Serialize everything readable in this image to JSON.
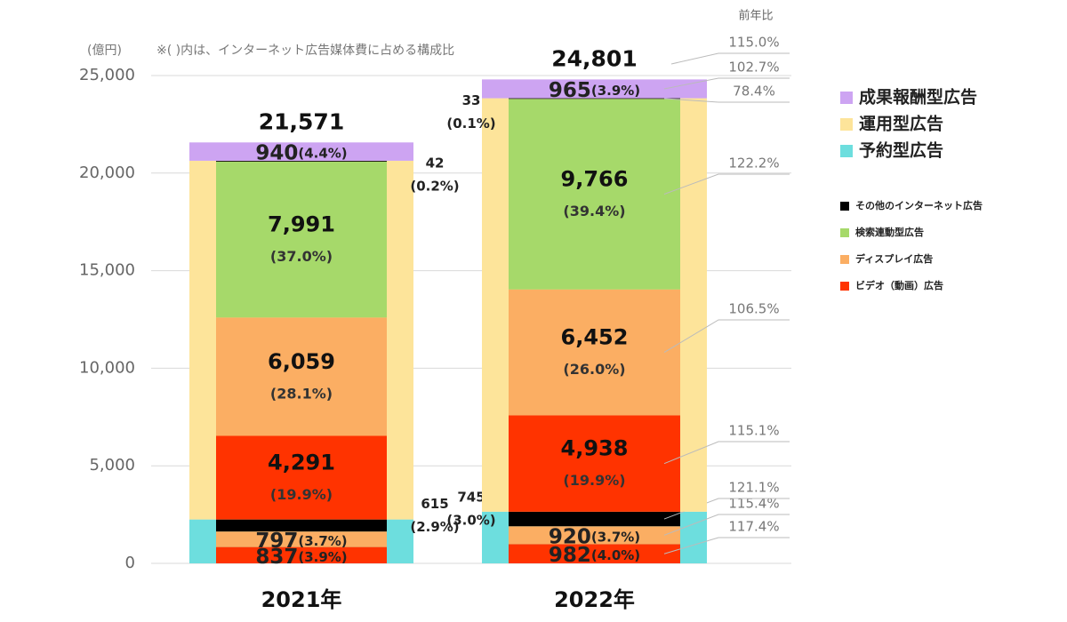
{
  "chart_data": {
    "type": "nested_stacked_bar",
    "unit_label": "(億円)",
    "note": "※( )内は、インターネット広告媒体費に占める構成比",
    "yoy_header": "前年比",
    "categories": [
      "2021年",
      "2022年"
    ],
    "ylim": [
      0,
      25000
    ],
    "yticks": [
      0,
      {
        "value": 5000,
        "label": "5,000"
      },
      {
        "value": 10000,
        "label": "10,000"
      },
      {
        "value": 15000,
        "label": "15,000"
      },
      {
        "value": 20000,
        "label": "20,000"
      },
      {
        "value": 25000,
        "label": "25,000"
      }
    ],
    "grid": true,
    "totals": {
      "values": [
        21571,
        24801
      ],
      "value_labels": [
        "21,571",
        "24,801"
      ],
      "yoy": "115.0%"
    },
    "groups": [
      {
        "name": "予約型広告",
        "color": "#6ddede",
        "segments": [
          {
            "color": "#ff3300",
            "values": [
              837,
              982
            ],
            "share_labels": [
              "(3.9%)",
              "(4.0%)"
            ],
            "yoy": "117.4%"
          },
          {
            "color": "#fbae63",
            "values": [
              797,
              920
            ],
            "share_labels": [
              "(3.7%)",
              "(3.7%)"
            ],
            "yoy": "115.4%"
          },
          {
            "color": "#000000",
            "values": [
              615,
              745
            ],
            "share_labels": [
              "(2.9%)",
              "(3.0%)"
            ],
            "yoy": "121.1%"
          }
        ]
      },
      {
        "name": "運用型広告",
        "color": "#fde49a",
        "segments": [
          {
            "color": "#ff3300",
            "values": [
              4291,
              4938
            ],
            "value_labels": [
              "4,291",
              "4,938"
            ],
            "share_labels": [
              "(19.9%)",
              "(19.9%)"
            ],
            "yoy": "115.1%"
          },
          {
            "color": "#fbae63",
            "values": [
              6059,
              6452
            ],
            "value_labels": [
              "6,059",
              "6,452"
            ],
            "share_labels": [
              "(28.1%)",
              "(26.0%)"
            ],
            "yoy": "106.5%"
          },
          {
            "color": "#a6d96a",
            "values": [
              7991,
              9766
            ],
            "value_labels": [
              "7,991",
              "9,766"
            ],
            "share_labels": [
              "(37.0%)",
              "(39.4%)"
            ],
            "yoy": "122.2%"
          },
          {
            "color": "#000000",
            "values": [
              42,
              33
            ],
            "share_labels": [
              "(0.2%)",
              "(0.1%)"
            ],
            "yoy": "78.4%"
          }
        ]
      },
      {
        "name": "成果報酬型広告",
        "color": "#cda4f2",
        "segments": [
          {
            "color": "#cda4f2",
            "values": [
              940,
              965
            ],
            "share_labels": [
              "(4.4%)",
              "(3.9%)"
            ],
            "yoy": "102.7%"
          }
        ]
      }
    ],
    "inner_legend": [
      {
        "name": "その他のインターネット広告",
        "color": "#000000"
      },
      {
        "name": "検索連動型広告",
        "color": "#a6d96a"
      },
      {
        "name": "ディスプレイ広告",
        "color": "#fbae63"
      },
      {
        "name": "ビデオ（動画）広告",
        "color": "#ff3300"
      }
    ]
  }
}
